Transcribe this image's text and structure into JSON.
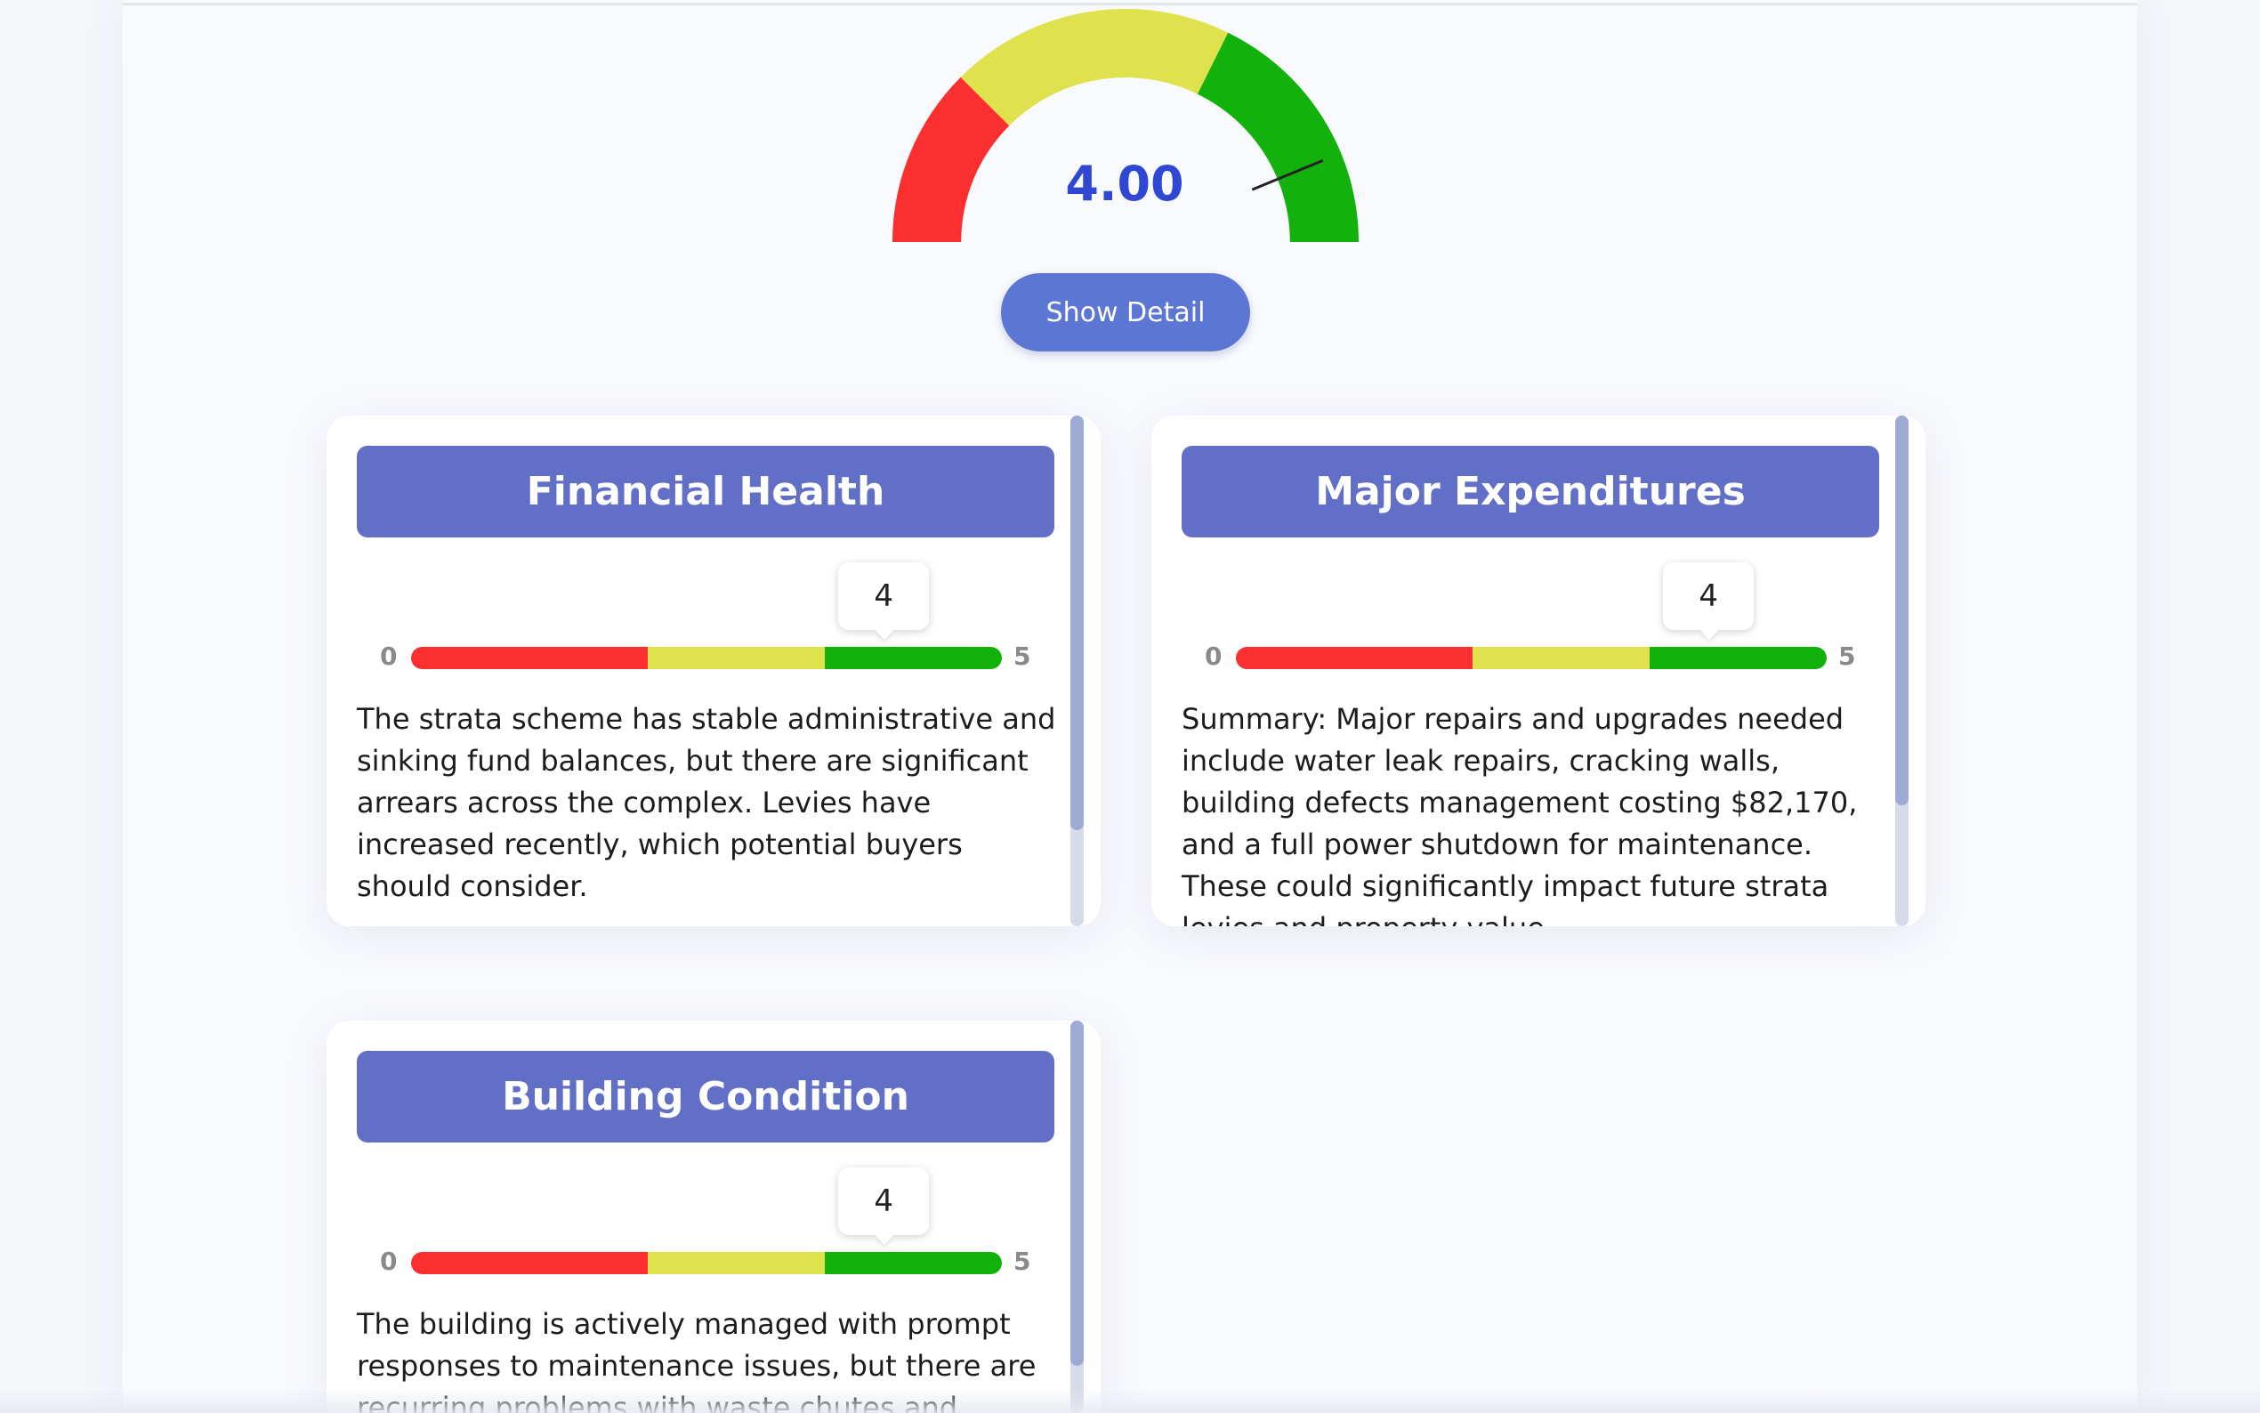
{
  "gauge": {
    "value_text": "4.00",
    "value": 4.0,
    "min": 0,
    "max": 5,
    "colors": {
      "low": "#fb2f2f",
      "mid": "#dfe24c",
      "high": "#13b10c",
      "needle": "#222222",
      "value_text": "#2f47d3"
    }
  },
  "show_detail_label": "Show Detail",
  "cards": [
    {
      "title": "Financial Health",
      "score": 4,
      "score_label": "4",
      "min_label": "0",
      "max_label": "5",
      "text": "The strata scheme has stable administrative and sinking fund balances, but there are significant arrears across the complex. Levies have increased recently, which potential buyers should consider."
    },
    {
      "title": "Major Expenditures",
      "score": 4,
      "score_label": "4",
      "min_label": "0",
      "max_label": "5",
      "text": "Summary: Major repairs and upgrades needed include water leak repairs, cracking walls, building defects management costing $82,170, and a full power shutdown for maintenance. These could significantly impact future strata levies and property value."
    },
    {
      "title": "Building Condition",
      "score": 4,
      "score_label": "4",
      "min_label": "0",
      "max_label": "5",
      "text": "The building is actively managed with prompt responses to maintenance issues, but there are recurring problems with waste chutes and"
    }
  ],
  "theme": {
    "header_bg": "#6170c6",
    "button_bg": "#5c76d4"
  }
}
